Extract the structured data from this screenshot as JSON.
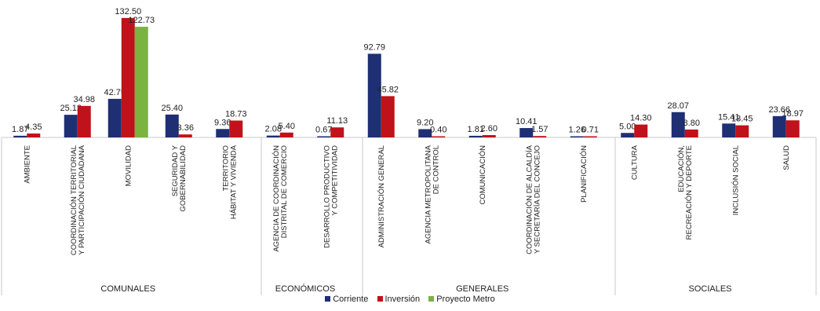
{
  "chart_data": {
    "type": "bar",
    "ylim": [
      0,
      135
    ],
    "grid": false,
    "legend_position": "bottom",
    "colors": {
      "Corriente": "#1f2f73",
      "Inversión": "#c0121a",
      "Proyecto Metro": "#7bb33f"
    },
    "series_names": [
      "Corriente",
      "Inversión",
      "Proyecto Metro"
    ],
    "groups": [
      {
        "label": "COMUNALES",
        "categories": [
          {
            "label": "AMBIENTE",
            "values": {
              "Corriente": 1.87,
              "Inversión": 4.35
            },
            "value_labels": {
              "Corriente": "1.87",
              "Inversión": "4.35"
            }
          },
          {
            "label": "COORDINACIÓN TERRITORIAL Y PARTICIPACIÓN CIUDADANA",
            "values": {
              "Corriente": 25.12,
              "Inversión": 34.98
            },
            "value_labels": {
              "Corriente": "25.12",
              "Inversión": "34.98"
            }
          },
          {
            "label": "MOVILIDAD",
            "values": {
              "Corriente": 42.79,
              "Inversión": 132.5,
              "Proyecto Metro": 122.73
            },
            "value_labels": {
              "Corriente": "42.79",
              "Inversión": "132.50",
              "Proyecto Metro": "122.73"
            }
          },
          {
            "label": "SEGURIDAD Y GOBERNABILIDAD",
            "values": {
              "Corriente": 25.4,
              "Inversión": 3.36
            },
            "value_labels": {
              "Corriente": "25.40",
              "Inversión": "3.36"
            }
          },
          {
            "label": "TERRITORIO HÁBITAT Y VIVIENDA",
            "values": {
              "Corriente": 9.36,
              "Inversión": 18.73
            },
            "value_labels": {
              "Corriente": "9.36",
              "Inversión": "18.73"
            }
          }
        ]
      },
      {
        "label": "ECONÓMICOS",
        "categories": [
          {
            "label": "AGENCIA DE COORDINACIÓN DISTRITAL DE COMERCIO",
            "values": {
              "Corriente": 2.08,
              "Inversión": 5.4
            },
            "value_labels": {
              "Corriente": "2.08",
              "Inversión": "5.40"
            }
          },
          {
            "label": "DESARROLLO PRODUCTIVO Y COMPETITIVIDAD",
            "values": {
              "Corriente": 0.67,
              "Inversión": 11.13
            },
            "value_labels": {
              "Corriente": "0.67",
              "Inversión": "11.13"
            }
          }
        ]
      },
      {
        "label": "GENERALES",
        "categories": [
          {
            "label": "ADMINISTRACIÓN GENERAL",
            "values": {
              "Corriente": 92.79,
              "Inversión": 45.82
            },
            "value_labels": {
              "Corriente": "92.79",
              "Inversión": "45.82"
            }
          },
          {
            "label": "AGENCIA METROPOLITANA DE CONTROL",
            "values": {
              "Corriente": 9.2,
              "Inversión": 0.4
            },
            "value_labels": {
              "Corriente": "9.20",
              "Inversión": "0.40"
            }
          },
          {
            "label": "COMUNICACIÓN",
            "values": {
              "Corriente": 1.81,
              "Inversión": 2.6
            },
            "value_labels": {
              "Corriente": "1.81",
              "Inversión": "2.60"
            }
          },
          {
            "label": "COORDINACIÓN DE ALCALDÍA Y SECRETARÍA DEL CONCEJO",
            "values": {
              "Corriente": 10.41,
              "Inversión": 1.57
            },
            "value_labels": {
              "Corriente": "10.41",
              "Inversión": "1.57"
            }
          },
          {
            "label": "PLANIFICACIÓN",
            "values": {
              "Corriente": 1.26,
              "Inversión": 0.71
            },
            "value_labels": {
              "Corriente": "1.26",
              "Inversión": "0.71"
            }
          }
        ]
      },
      {
        "label": "SOCIALES",
        "categories": [
          {
            "label": "CULTURA",
            "values": {
              "Corriente": 5.0,
              "Inversión": 14.3
            },
            "value_labels": {
              "Corriente": "5.00",
              "Inversión": "14.30"
            }
          },
          {
            "label": "EDUCACIÓN, RECREACIÓN Y DEPORTE",
            "values": {
              "Corriente": 28.07,
              "Inversión": 8.8
            },
            "value_labels": {
              "Corriente": "28.07",
              "Inversión": "8.80"
            }
          },
          {
            "label": "INCLUSIÓN SOCIAL",
            "values": {
              "Corriente": 15.41,
              "Inversión": 13.45
            },
            "value_labels": {
              "Corriente": "15.41",
              "Inversión": "13.45"
            }
          },
          {
            "label": "SALUD",
            "values": {
              "Corriente": 23.66,
              "Inversión": 18.97
            },
            "value_labels": {
              "Corriente": "23.66",
              "Inversión": "18.97"
            }
          }
        ]
      }
    ]
  },
  "legend": {
    "items": [
      {
        "label": "Corriente",
        "color": "#1f2f73"
      },
      {
        "label": "Inversión",
        "color": "#c0121a"
      },
      {
        "label": "Proyecto Metro",
        "color": "#7bb33f"
      }
    ]
  }
}
